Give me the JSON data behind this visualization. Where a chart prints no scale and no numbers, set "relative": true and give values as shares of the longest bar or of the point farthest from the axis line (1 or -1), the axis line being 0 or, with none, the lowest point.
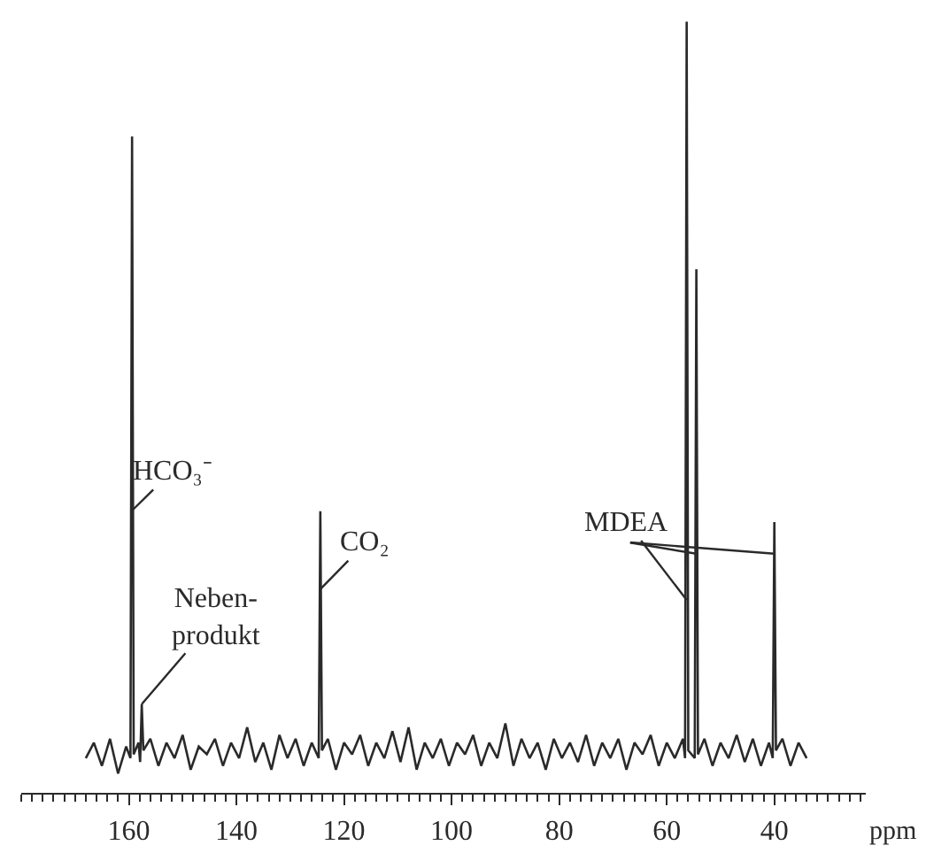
{
  "chart_data": {
    "type": "line",
    "relative": true,
    "xlabel": "ppm",
    "xlim": [
      180,
      23
    ],
    "xticks": [
      160,
      140,
      120,
      100,
      80,
      60,
      40
    ],
    "series": [
      {
        "color": "#2a2a2a",
        "x": [
          168,
          166.5,
          165,
          163.5,
          162,
          160.5,
          159.7,
          159.4,
          159.1,
          158.2,
          157.9,
          157.6,
          157.3,
          156,
          154.5,
          153,
          151.5,
          150,
          148.5,
          147,
          145.5,
          144,
          142.5,
          141,
          139.5,
          138,
          136.5,
          135,
          133.5,
          132,
          130.5,
          129,
          127.5,
          126,
          124.7,
          124.4,
          124.1,
          123,
          121.5,
          120,
          118.5,
          117,
          115.5,
          114,
          112.5,
          111,
          109.5,
          108,
          106.5,
          105,
          103.5,
          102,
          100.5,
          99,
          97.5,
          96,
          94.5,
          93,
          91.5,
          90,
          88.5,
          87,
          85.5,
          84,
          82.5,
          81,
          79.5,
          78,
          76.5,
          75,
          73.5,
          72,
          70.5,
          69,
          67.5,
          66,
          64.5,
          63,
          61.5,
          60,
          58.5,
          57,
          56.6,
          56.3,
          56.0,
          54.8,
          54.5,
          54.2,
          53,
          51.5,
          50,
          48.5,
          47,
          45.5,
          44,
          42.5,
          41,
          40.3,
          40.0,
          39.7,
          38.5,
          37,
          35.5,
          34
        ],
        "values": [
          0.045,
          0.065,
          0.035,
          0.07,
          0.025,
          0.06,
          0.045,
          0.851,
          0.05,
          0.065,
          0.04,
          0.115,
          0.055,
          0.07,
          0.035,
          0.065,
          0.045,
          0.075,
          0.03,
          0.06,
          0.05,
          0.07,
          0.035,
          0.065,
          0.045,
          0.085,
          0.04,
          0.065,
          0.03,
          0.075,
          0.045,
          0.07,
          0.035,
          0.065,
          0.045,
          0.365,
          0.055,
          0.07,
          0.03,
          0.065,
          0.05,
          0.075,
          0.035,
          0.065,
          0.045,
          0.08,
          0.04,
          0.085,
          0.03,
          0.065,
          0.045,
          0.07,
          0.035,
          0.065,
          0.05,
          0.075,
          0.035,
          0.065,
          0.045,
          0.09,
          0.035,
          0.07,
          0.045,
          0.065,
          0.03,
          0.07,
          0.045,
          0.065,
          0.04,
          0.075,
          0.035,
          0.065,
          0.045,
          0.07,
          0.03,
          0.065,
          0.05,
          0.075,
          0.035,
          0.065,
          0.045,
          0.07,
          0.045,
          1.0,
          0.055,
          0.045,
          0.679,
          0.05,
          0.07,
          0.035,
          0.065,
          0.045,
          0.075,
          0.04,
          0.07,
          0.035,
          0.065,
          0.045,
          0.351,
          0.055,
          0.07,
          0.035,
          0.065,
          0.045
        ]
      }
    ],
    "annotations": [
      {
        "text": "HCO₃⁻",
        "x": 159.4,
        "y": 0.366
      },
      {
        "text": "Neben-\nprodukt",
        "x": 157.6,
        "y": 0.115
      },
      {
        "text": "CO₂",
        "x": 124.4,
        "y": 0.264
      },
      {
        "text": "MDEA",
        "x": 56.3,
        "y": 0.25
      }
    ]
  }
}
